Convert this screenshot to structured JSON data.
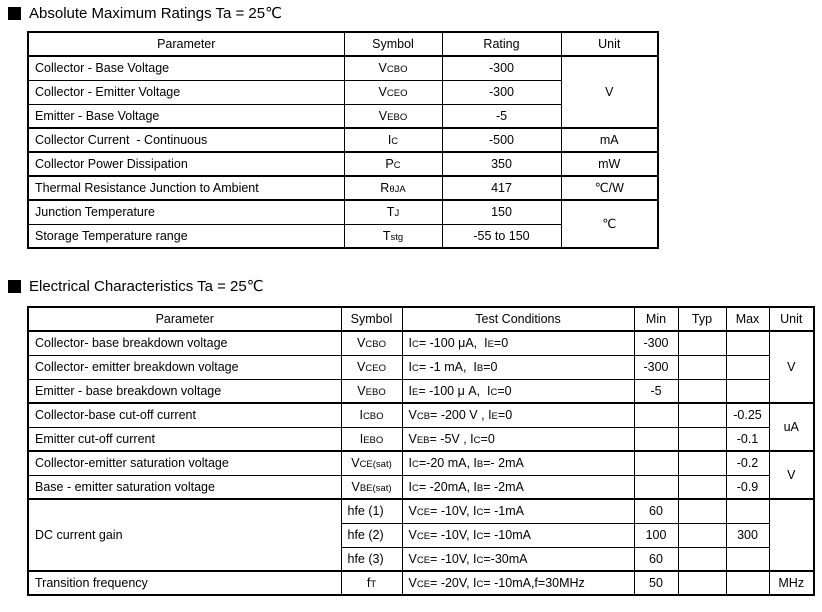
{
  "sections": [
    {
      "id": "absolute-maximum-ratings",
      "title": "Absolute Maximum Ratings Ta = 25℃",
      "table": {
        "columns": [
          316,
          98,
          119,
          97
        ],
        "aligns": [
          "l",
          "c",
          "c",
          "c"
        ],
        "headers": [
          "Parameter",
          "Symbol",
          "Rating",
          "Unit"
        ],
        "rows": [
          {
            "cells": [
              {
                "text": "Collector - Base Voltage"
              },
              {
                "text": "V~CBO~"
              },
              {
                "text": "-300"
              },
              {
                "text": "V",
                "rowspan": 3
              }
            ]
          },
          {
            "cells": [
              {
                "text": "Collector - Emitter Voltage"
              },
              {
                "text": "V~CEO~"
              },
              {
                "text": "-300"
              }
            ]
          },
          {
            "cells": [
              {
                "text": "Emitter - Base Voltage"
              },
              {
                "text": "V~EBO~"
              },
              {
                "text": "-5"
              }
            ],
            "groupEnd": true
          },
          {
            "cells": [
              {
                "text": "Collector Current  - Continuous"
              },
              {
                "text": "I~C~"
              },
              {
                "text": "-500"
              },
              {
                "text": "mA"
              }
            ],
            "groupEnd": true
          },
          {
            "cells": [
              {
                "text": "Collector Power Dissipation"
              },
              {
                "text": "P~C~"
              },
              {
                "text": "350"
              },
              {
                "text": "mW"
              }
            ],
            "groupEnd": true
          },
          {
            "cells": [
              {
                "text": "Thermal Resistance Junction to Ambient"
              },
              {
                "text": "R~θJA~"
              },
              {
                "text": "417"
              },
              {
                "text": "℃/W"
              }
            ],
            "groupEnd": true
          },
          {
            "cells": [
              {
                "text": "Junction Temperature"
              },
              {
                "text": "T~J~"
              },
              {
                "text": "150"
              },
              {
                "text": "℃",
                "rowspan": 2
              }
            ]
          },
          {
            "cells": [
              {
                "text": "Storage Temperature range"
              },
              {
                "text": "T~stg~"
              },
              {
                "text": "-55 to 150"
              }
            ]
          }
        ]
      }
    },
    {
      "id": "electrical-characteristics",
      "title": "Electrical Characteristics Ta = 25℃",
      "table": {
        "columns": [
          313,
          61,
          232,
          44,
          48,
          43,
          45
        ],
        "aligns": [
          "l",
          "c",
          "l",
          "c",
          "c",
          "c",
          "c"
        ],
        "headers": [
          "Parameter",
          "Symbol",
          "Test Conditions",
          "Min",
          "Typ",
          "Max",
          "Unit"
        ],
        "rows": [
          {
            "cells": [
              {
                "text": "Collector- base breakdown voltage"
              },
              {
                "text": "V~CBO~"
              },
              {
                "text": "I~C~= -100 μA,  I~E~=0"
              },
              {
                "text": "-300"
              },
              {
                "text": ""
              },
              {
                "text": ""
              },
              {
                "text": "V",
                "rowspan": 3
              }
            ]
          },
          {
            "cells": [
              {
                "text": "Collector- emitter breakdown voltage"
              },
              {
                "text": "V~CEO~"
              },
              {
                "text": "I~C~= -1 mA,  I~B~=0"
              },
              {
                "text": "-300"
              },
              {
                "text": ""
              },
              {
                "text": ""
              }
            ]
          },
          {
            "cells": [
              {
                "text": "Emitter - base breakdown voltage"
              },
              {
                "text": "V~EBO~"
              },
              {
                "text": "I~E~= -100 μ A,  I~C~=0"
              },
              {
                "text": "-5"
              },
              {
                "text": ""
              },
              {
                "text": ""
              }
            ],
            "groupEnd": true
          },
          {
            "cells": [
              {
                "text": "Collector-base cut-off current"
              },
              {
                "text": "I~CBO~"
              },
              {
                "text": "V~CB~= -200 V , I~E~=0"
              },
              {
                "text": ""
              },
              {
                "text": ""
              },
              {
                "text": "-0.25"
              },
              {
                "text": "uA",
                "rowspan": 2
              }
            ]
          },
          {
            "cells": [
              {
                "text": "Emitter cut-off current"
              },
              {
                "text": "I~EBO~"
              },
              {
                "text": "V~EB~= -5V , I~C~=0"
              },
              {
                "text": ""
              },
              {
                "text": ""
              },
              {
                "text": "-0.1"
              }
            ],
            "groupEnd": true
          },
          {
            "cells": [
              {
                "text": "Collector-emitter saturation voltage"
              },
              {
                "text": "V~CE(sat)~"
              },
              {
                "text": "I~C~=-20 mA, I~B~=- 2mA"
              },
              {
                "text": ""
              },
              {
                "text": ""
              },
              {
                "text": "-0.2"
              },
              {
                "text": "V",
                "rowspan": 2
              }
            ]
          },
          {
            "cells": [
              {
                "text": "Base - emitter saturation voltage"
              },
              {
                "text": "V~BE(sat)~"
              },
              {
                "text": "I~C~= -20mA, I~B~= -2mA"
              },
              {
                "text": ""
              },
              {
                "text": ""
              },
              {
                "text": "-0.9"
              }
            ],
            "groupEnd": true
          },
          {
            "cells": [
              {
                "text": "DC current gain",
                "rowspan": 3
              },
              {
                "text": "hfe (1)",
                "align": "l"
              },
              {
                "text": "V~CE~= -10V, I~C~= -1mA"
              },
              {
                "text": "60"
              },
              {
                "text": ""
              },
              {
                "text": ""
              },
              {
                "text": "",
                "rowspan": 3
              }
            ]
          },
          {
            "cells": [
              {
                "text": "hfe (2)",
                "align": "l"
              },
              {
                "text": "V~CE~= -10V, I~C~= -10mA"
              },
              {
                "text": "100"
              },
              {
                "text": ""
              },
              {
                "text": "300"
              }
            ]
          },
          {
            "cells": [
              {
                "text": "hfe (3)",
                "align": "l"
              },
              {
                "text": "V~CE~= -10V, I~C~=-30mA"
              },
              {
                "text": "60"
              },
              {
                "text": ""
              },
              {
                "text": ""
              }
            ],
            "groupEnd": true
          },
          {
            "cells": [
              {
                "text": "Transition frequency"
              },
              {
                "text": "f~T~"
              },
              {
                "text": "V~CE~= -20V, I~C~= -10mA,f=30MHz"
              },
              {
                "text": "50"
              },
              {
                "text": ""
              },
              {
                "text": ""
              },
              {
                "text": "MHz"
              }
            ]
          }
        ]
      }
    }
  ]
}
